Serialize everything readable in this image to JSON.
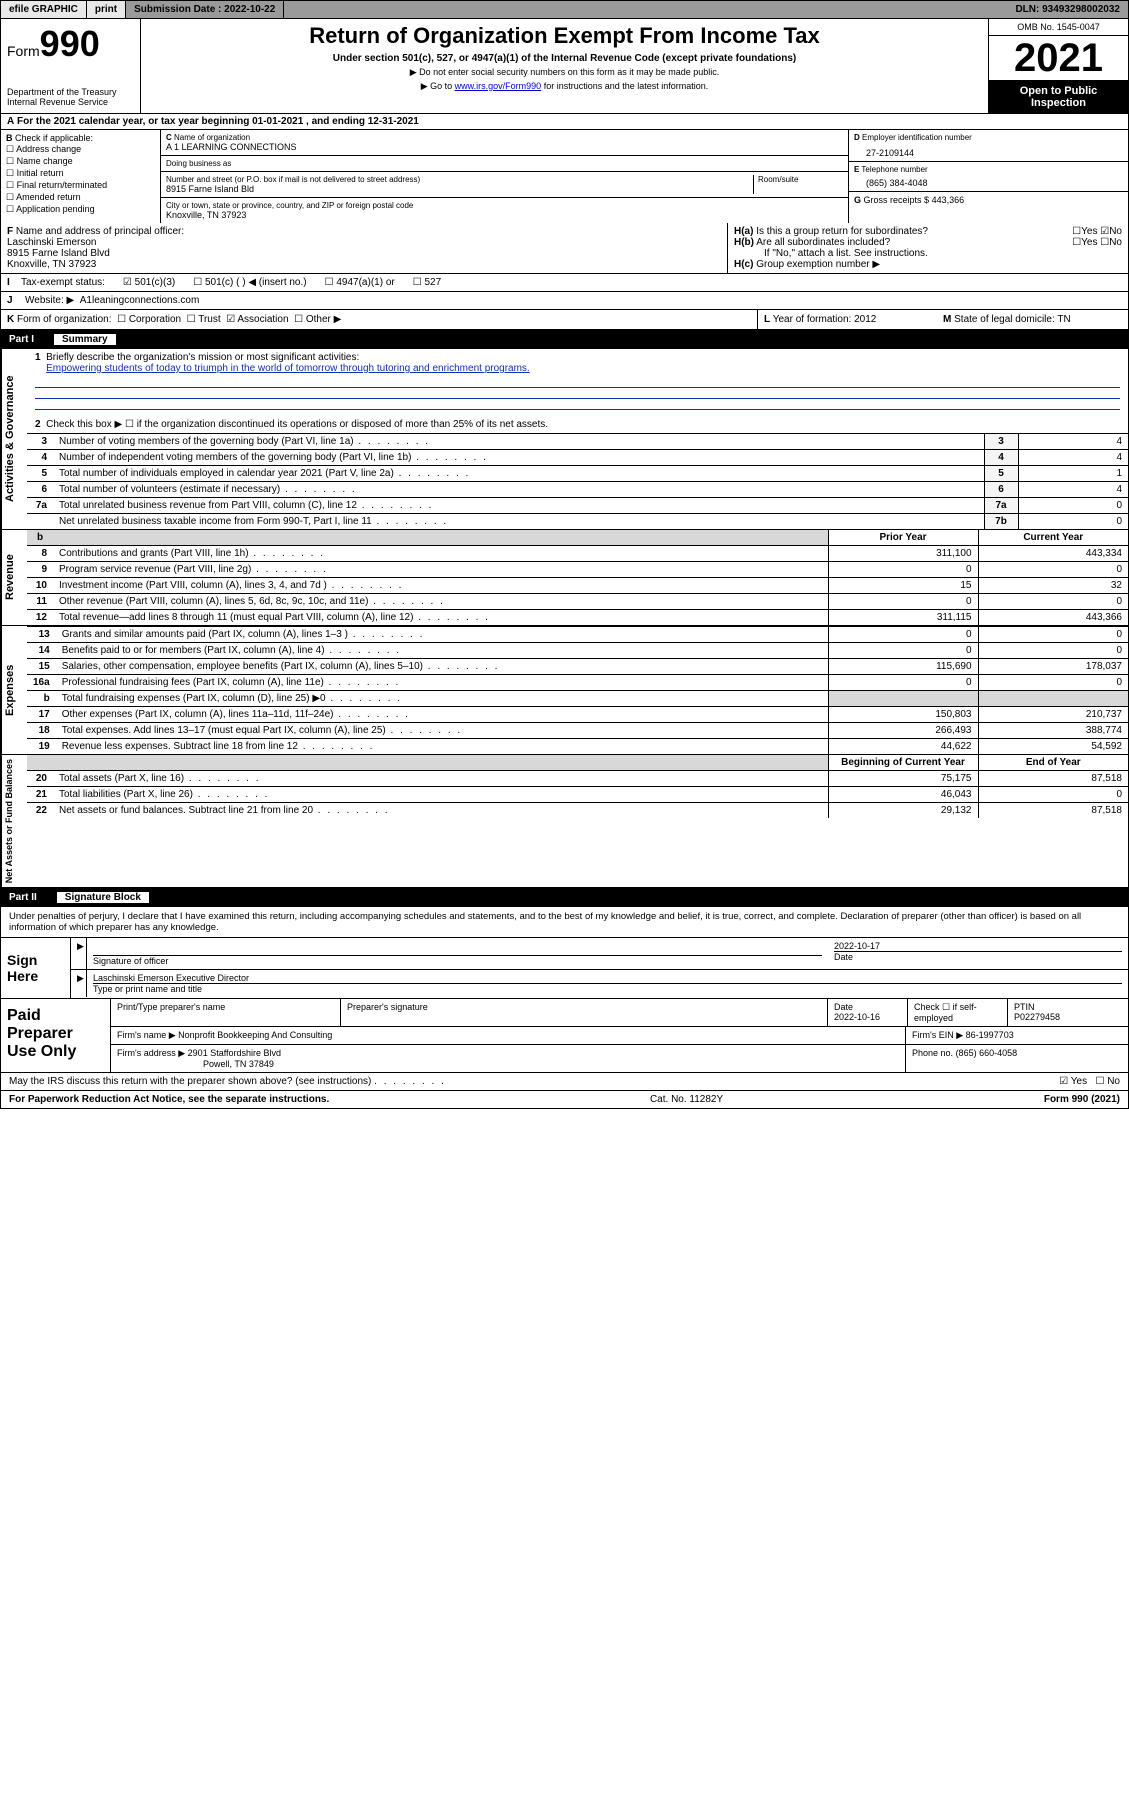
{
  "topbar": {
    "efile": "efile GRAPHIC",
    "print": "print",
    "sub_label": "Submission Date : ",
    "sub_date": "2022-10-22",
    "dln_label": "DLN: ",
    "dln": "93493298002032"
  },
  "header": {
    "form_word": "Form",
    "form_no": "990",
    "dept": "Department of the Treasury\nInternal Revenue Service",
    "title": "Return of Organization Exempt From Income Tax",
    "subtitle": "Under section 501(c), 527, or 4947(a)(1) of the Internal Revenue Code (except private foundations)",
    "note1": "Do not enter social security numbers on this form as it may be made public.",
    "note2_pre": "Go to ",
    "note2_link": "www.irs.gov/Form990",
    "note2_post": " for instructions and the latest information.",
    "omb": "OMB No. 1545-0047",
    "year": "2021",
    "inspect": "Open to Public Inspection"
  },
  "A": {
    "text": "For the 2021 calendar year, or tax year beginning 01-01-2021   , and ending 12-31-2021"
  },
  "B": {
    "label": "Check if applicable:",
    "items": [
      "Address change",
      "Name change",
      "Initial return",
      "Final return/terminated",
      "Amended return",
      "Application pending"
    ]
  },
  "C": {
    "name_lbl": "Name of organization",
    "name": "A 1 LEARNING CONNECTIONS",
    "dba_lbl": "Doing business as",
    "dba": "",
    "addr_lbl": "Number and street (or P.O. box if mail is not delivered to street address)",
    "room_lbl": "Room/suite",
    "addr": "8915 Farne Island Bld",
    "city_lbl": "City or town, state or province, country, and ZIP or foreign postal code",
    "city": "Knoxville, TN  37923"
  },
  "D": {
    "lbl": "Employer identification number",
    "val": "27-2109144"
  },
  "E": {
    "lbl": "Telephone number",
    "val": "(865) 384-4048"
  },
  "G": {
    "lbl": "Gross receipts $",
    "val": "443,366"
  },
  "F": {
    "lbl": "Name and address of principal officer:",
    "name": "Laschinski Emerson",
    "addr1": "8915 Farne Island Blvd",
    "addr2": "Knoxville, TN  37923"
  },
  "H": {
    "a": "Is this a group return for subordinates?",
    "a_yes": "Yes",
    "a_no": "No",
    "b": "Are all subordinates included?",
    "b_note": "If \"No,\" attach a list. See instructions.",
    "c": "Group exemption number ▶"
  },
  "I": {
    "lbl": "Tax-exempt status:",
    "opts": [
      "501(c)(3)",
      "501(c) (  ) ◀ (insert no.)",
      "4947(a)(1) or",
      "527"
    ],
    "checked_index": 0
  },
  "J": {
    "lbl": "Website: ▶",
    "val": "A1leaningconnections.com"
  },
  "K": {
    "lbl": "Form of organization:",
    "opts": [
      "Corporation",
      "Trust",
      "Association",
      "Other ▶"
    ],
    "checked_index": 2
  },
  "L": {
    "lbl": "Year of formation:",
    "val": "2012"
  },
  "M": {
    "lbl": "State of legal domicile:",
    "val": "TN"
  },
  "partI": {
    "title": "Part I",
    "subtitle": "Summary",
    "line1_lbl": "Briefly describe the organization's mission or most significant activities:",
    "mission": "Empowering students of today to triumph in the world of tomorrow through tutoring and enrichment programs.",
    "line2": "Check this box ▶ ☐  if the organization discontinued its operations or disposed of more than 25% of its net assets.",
    "gov_rows": [
      {
        "n": "3",
        "t": "Number of voting members of the governing body (Part VI, line 1a)",
        "box": "3",
        "v": "4"
      },
      {
        "n": "4",
        "t": "Number of independent voting members of the governing body (Part VI, line 1b)",
        "box": "4",
        "v": "4"
      },
      {
        "n": "5",
        "t": "Total number of individuals employed in calendar year 2021 (Part V, line 2a)",
        "box": "5",
        "v": "1"
      },
      {
        "n": "6",
        "t": "Total number of volunteers (estimate if necessary)",
        "box": "6",
        "v": "4"
      },
      {
        "n": "7a",
        "t": "Total unrelated business revenue from Part VIII, column (C), line 12",
        "box": "7a",
        "v": "0"
      },
      {
        "n": "",
        "t": "Net unrelated business taxable income from Form 990-T, Part I, line 11",
        "box": "7b",
        "v": "0"
      }
    ],
    "col_prior": "Prior Year",
    "col_current": "Current Year",
    "rev_rows": [
      {
        "n": "8",
        "t": "Contributions and grants (Part VIII, line 1h)",
        "p": "311,100",
        "c": "443,334"
      },
      {
        "n": "9",
        "t": "Program service revenue (Part VIII, line 2g)",
        "p": "0",
        "c": "0"
      },
      {
        "n": "10",
        "t": "Investment income (Part VIII, column (A), lines 3, 4, and 7d )",
        "p": "15",
        "c": "32"
      },
      {
        "n": "11",
        "t": "Other revenue (Part VIII, column (A), lines 5, 6d, 8c, 9c, 10c, and 11e)",
        "p": "0",
        "c": "0"
      },
      {
        "n": "12",
        "t": "Total revenue—add lines 8 through 11 (must equal Part VIII, column (A), line 12)",
        "p": "311,115",
        "c": "443,366"
      }
    ],
    "exp_rows": [
      {
        "n": "13",
        "t": "Grants and similar amounts paid (Part IX, column (A), lines 1–3 )",
        "p": "0",
        "c": "0"
      },
      {
        "n": "14",
        "t": "Benefits paid to or for members (Part IX, column (A), line 4)",
        "p": "0",
        "c": "0"
      },
      {
        "n": "15",
        "t": "Salaries, other compensation, employee benefits (Part IX, column (A), lines 5–10)",
        "p": "115,690",
        "c": "178,037"
      },
      {
        "n": "16a",
        "t": "Professional fundraising fees (Part IX, column (A), line 11e)",
        "p": "0",
        "c": "0"
      },
      {
        "n": "b",
        "t": "Total fundraising expenses (Part IX, column (D), line 25) ▶0",
        "p": "",
        "c": "",
        "shade": true
      },
      {
        "n": "17",
        "t": "Other expenses (Part IX, column (A), lines 11a–11d, 11f–24e)",
        "p": "150,803",
        "c": "210,737"
      },
      {
        "n": "18",
        "t": "Total expenses. Add lines 13–17 (must equal Part IX, column (A), line 25)",
        "p": "266,493",
        "c": "388,774"
      },
      {
        "n": "19",
        "t": "Revenue less expenses. Subtract line 18 from line 12",
        "p": "44,622",
        "c": "54,592"
      }
    ],
    "col_begin": "Beginning of Current Year",
    "col_end": "End of Year",
    "net_rows": [
      {
        "n": "20",
        "t": "Total assets (Part X, line 16)",
        "p": "75,175",
        "c": "87,518"
      },
      {
        "n": "21",
        "t": "Total liabilities (Part X, line 26)",
        "p": "46,043",
        "c": "0"
      },
      {
        "n": "22",
        "t": "Net assets or fund balances. Subtract line 21 from line 20",
        "p": "29,132",
        "c": "87,518"
      }
    ],
    "vlab_gov": "Activities & Governance",
    "vlab_rev": "Revenue",
    "vlab_exp": "Expenses",
    "vlab_net": "Net Assets or Fund Balances"
  },
  "partII": {
    "title": "Part II",
    "subtitle": "Signature Block",
    "declaration": "Under penalties of perjury, I declare that I have examined this return, including accompanying schedules and statements, and to the best of my knowledge and belief, it is true, correct, and complete. Declaration of preparer (other than officer) is based on all information of which preparer has any knowledge.",
    "sign_here": "Sign Here",
    "sig_of_officer": "Signature of officer",
    "sig_date_lbl": "Date",
    "sig_date": "2022-10-17",
    "officer_name": "Laschinski Emerson  Executive Director",
    "officer_sub": "Type or print name and title",
    "paid_lbl": "Paid Preparer Use Only",
    "prep_name_lbl": "Print/Type preparer's name",
    "prep_sig_lbl": "Preparer's signature",
    "prep_date_lbl": "Date",
    "prep_date": "2022-10-16",
    "prep_check_lbl": "Check ☐ if self-employed",
    "ptin_lbl": "PTIN",
    "ptin": "P02279458",
    "firm_name_lbl": "Firm's name    ▶",
    "firm_name": "Nonprofit Bookkeeping And Consulting",
    "firm_ein_lbl": "Firm's EIN ▶",
    "firm_ein": "86-1997703",
    "firm_addr_lbl": "Firm's address ▶",
    "firm_addr1": "2901 Staffordshire Blvd",
    "firm_addr2": "Powell, TN  37849",
    "phone_lbl": "Phone no.",
    "phone": "(865) 660-4058",
    "may_irs": "May the IRS discuss this return with the preparer shown above? (see instructions)",
    "may_yes": "Yes",
    "may_no": "No"
  },
  "footer": {
    "left": "For Paperwork Reduction Act Notice, see the separate instructions.",
    "mid": "Cat. No. 11282Y",
    "right": "Form 990 (2021)"
  }
}
